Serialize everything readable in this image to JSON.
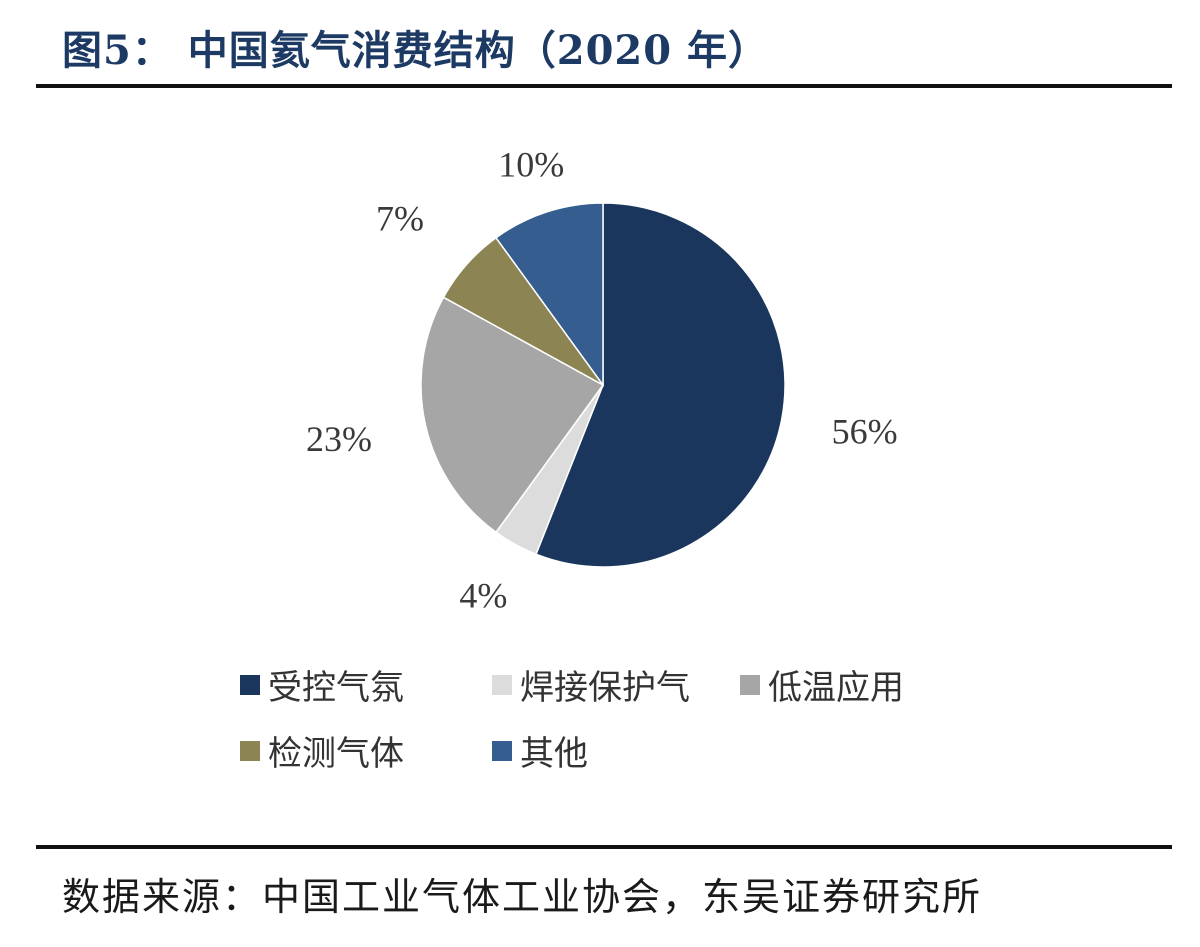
{
  "header": {
    "title": "图5：  中国氦气消费结构（2020 年）"
  },
  "chart_data": {
    "type": "pie",
    "title": "",
    "slices": [
      {
        "name": "受控气氛",
        "value": 56,
        "label": "56%",
        "color": "#1b365d"
      },
      {
        "name": "焊接保护气",
        "value": 4,
        "label": "4%",
        "color": "#dcdcdc"
      },
      {
        "name": "低温应用",
        "value": 23,
        "label": "23%",
        "color": "#a6a6a6"
      },
      {
        "name": "检测气体",
        "value": 7,
        "label": "7%",
        "color": "#8c8452"
      },
      {
        "name": "其他",
        "value": 10,
        "label": "10%",
        "color": "#355d8f"
      }
    ],
    "start_angle_deg": 0,
    "direction": "clockwise",
    "legend_position": "bottom"
  },
  "footer": {
    "source": "数据来源：中国工业气体工业协会，东吴证券研究所"
  }
}
